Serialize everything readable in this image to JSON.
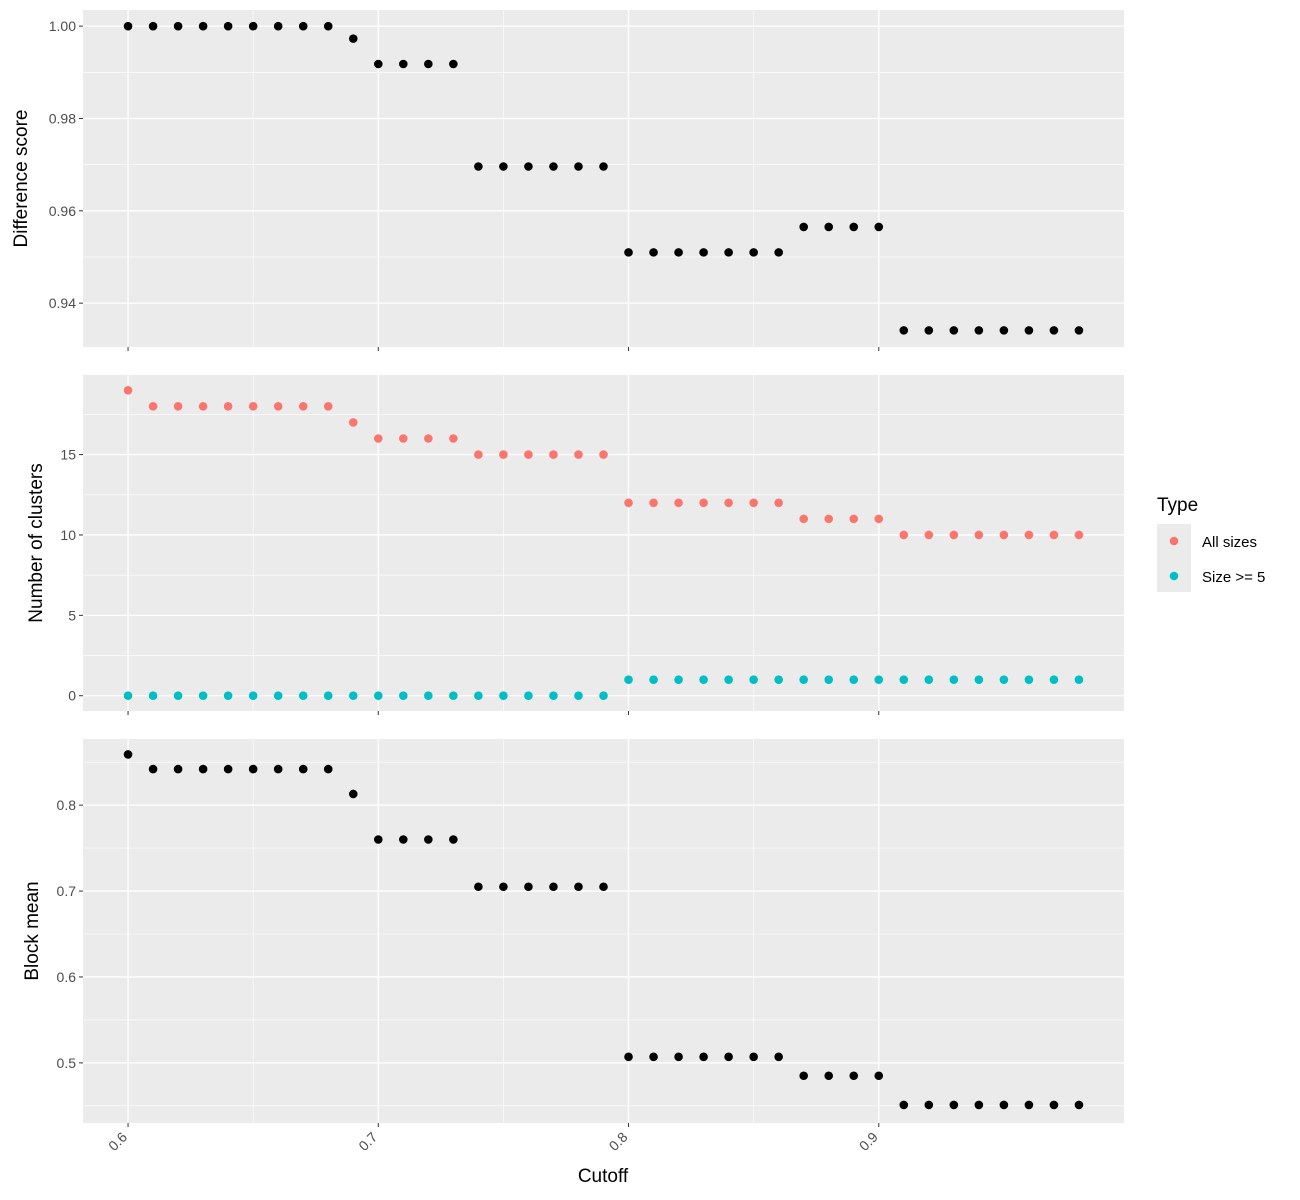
{
  "chart_data": {
    "type": "scatter",
    "x": [
      0.6,
      0.61,
      0.62,
      0.63,
      0.64,
      0.65,
      0.66,
      0.67,
      0.68,
      0.69,
      0.7,
      0.71,
      0.72,
      0.73,
      0.74,
      0.75,
      0.76,
      0.77,
      0.78,
      0.79,
      0.8,
      0.81,
      0.82,
      0.83,
      0.84,
      0.85,
      0.86,
      0.87,
      0.88,
      0.89,
      0.9,
      0.91,
      0.92,
      0.93,
      0.94,
      0.95,
      0.96,
      0.97,
      0.98
    ],
    "xlabel": "Cutoff",
    "xlim": [
      0.582,
      0.998
    ],
    "x_ticks": [
      "0.6",
      "0.7",
      "0.8",
      "0.9"
    ],
    "grid": true,
    "panel_background": "#ebebeb",
    "grid_color": "#ffffff",
    "panels": [
      {
        "ylabel": "Difference score",
        "ylim": [
          0.9305,
          1.0035
        ],
        "y_ticks": [
          "0.94",
          "0.96",
          "0.98",
          "1.00"
        ],
        "series": [
          {
            "color": "#000000",
            "values": [
              1.0,
              1.0,
              1.0,
              1.0,
              1.0,
              1.0,
              1.0,
              1.0,
              1.0,
              0.9973,
              0.9918,
              0.9918,
              0.9918,
              0.9918,
              0.9696,
              0.9696,
              0.9696,
              0.9696,
              0.9696,
              0.9696,
              0.951,
              0.951,
              0.951,
              0.951,
              0.951,
              0.951,
              0.951,
              0.9565,
              0.9565,
              0.9565,
              0.9565,
              0.9341,
              0.9341,
              0.9341,
              0.9341,
              0.9341,
              0.9341,
              0.9341,
              0.9341
            ]
          }
        ]
      },
      {
        "ylabel": "Number of clusters",
        "ylim": [
          -0.95,
          19.95
        ],
        "y_ticks": [
          "0",
          "5",
          "10",
          "15"
        ],
        "series": [
          {
            "name": "All sizes",
            "color": "#F8766D",
            "values": [
              19,
              18,
              18,
              18,
              18,
              18,
              18,
              18,
              18,
              17,
              16,
              16,
              16,
              16,
              15,
              15,
              15,
              15,
              15,
              15,
              12,
              12,
              12,
              12,
              12,
              12,
              12,
              11,
              11,
              11,
              11,
              10,
              10,
              10,
              10,
              10,
              10,
              10,
              10
            ]
          },
          {
            "name": "Size >= 5",
            "color": "#00BFC4",
            "values": [
              0,
              0,
              0,
              0,
              0,
              0,
              0,
              0,
              0,
              0,
              0,
              0,
              0,
              0,
              0,
              0,
              0,
              0,
              0,
              0,
              1,
              1,
              1,
              1,
              1,
              1,
              1,
              1,
              1,
              1,
              1,
              1,
              1,
              1,
              1,
              1,
              1,
              1,
              1
            ]
          }
        ]
      },
      {
        "ylabel": "Block mean",
        "ylim": [
          0.43,
          0.877
        ],
        "y_ticks": [
          "0.5",
          "0.6",
          "0.7",
          "0.8"
        ],
        "series": [
          {
            "color": "#000000",
            "values": [
              0.859,
              0.842,
              0.842,
              0.842,
              0.842,
              0.842,
              0.842,
              0.842,
              0.842,
              0.813,
              0.76,
              0.76,
              0.76,
              0.76,
              0.705,
              0.705,
              0.705,
              0.705,
              0.705,
              0.705,
              0.507,
              0.507,
              0.507,
              0.507,
              0.507,
              0.507,
              0.507,
              0.485,
              0.485,
              0.485,
              0.485,
              0.451,
              0.451,
              0.451,
              0.451,
              0.451,
              0.451,
              0.451,
              0.451
            ]
          }
        ]
      }
    ],
    "legend": {
      "title": "Type",
      "position": "right",
      "entries": [
        {
          "label": "All sizes",
          "color": "#F8766D"
        },
        {
          "label": "Size >= 5",
          "color": "#00BFC4"
        }
      ]
    }
  }
}
